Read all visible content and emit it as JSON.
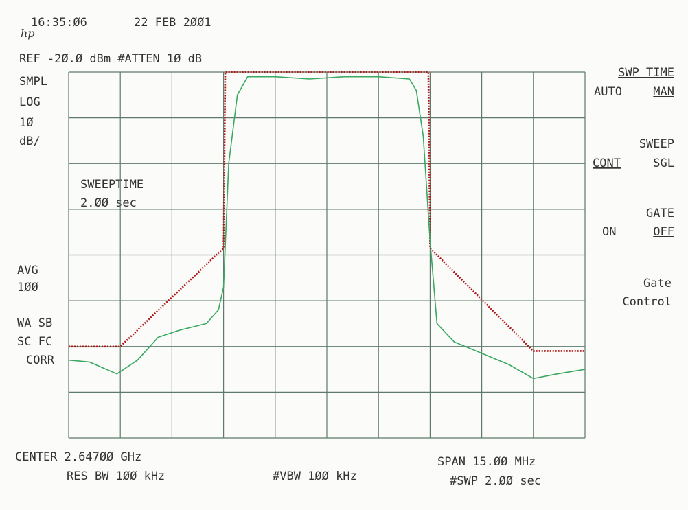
{
  "screen": {
    "time": "16:35:Ø6",
    "date": "22 FEB 2ØØ1",
    "logo": "hp",
    "ref": "REF -2Ø.Ø dBm #ATTEN 1Ø dB",
    "left": [
      "SMPL",
      "LOG",
      "1Ø",
      "dB/"
    ],
    "sweeptime": [
      "SWEEPTIME",
      "2.ØØ  sec"
    ],
    "avg": [
      "AVG",
      "1ØØ"
    ],
    "corr": [
      "WA SB",
      "SC FC",
      "CORR"
    ],
    "bottom": {
      "center": "CENTER 2.647ØØ GHz",
      "res_bw": "RES BW 1ØØ kHz",
      "vbw": "#VBW 1ØØ kHz",
      "span": "SPAN 15.ØØ MHz",
      "swp": "#SWP 2.ØØ  sec"
    },
    "softkeys": {
      "swp_time": "SWP TIME",
      "auto": "AUTO",
      "man": "MAN",
      "sweep": "SWEEP",
      "cont": "CONT",
      "sgl": "SGL",
      "gate": "GATE",
      "on": "ON",
      "off": "OFF",
      "gate_control": [
        "Gate",
        "Control"
      ]
    }
  },
  "chart_data": {
    "type": "line",
    "xlim": [
      -7.5,
      7.5
    ],
    "ylim": [
      -100,
      -20
    ],
    "xticks": [
      -7.5,
      -6,
      -4.5,
      -3,
      -1.5,
      0,
      1.5,
      3,
      4.5,
      6,
      7.5
    ],
    "yticks": [
      -100,
      -90,
      -80,
      -70,
      -60,
      -50,
      -40,
      -30,
      -20
    ],
    "grid": true,
    "series": [
      {
        "color": "#b01818",
        "style": "dotted",
        "x": [
          -7.5,
          -6,
          -3,
          -2.95,
          2.95,
          3,
          6,
          7.5
        ],
        "values": [
          -80,
          -80,
          -58.5,
          -20,
          -20,
          -58.5,
          -81,
          -81
        ]
      },
      {
        "color": "#3aa860",
        "style": "solid",
        "x": [
          -7.5,
          -6.9,
          -6.1,
          -5.5,
          -4.9,
          -4.3,
          -3.5,
          -3.15,
          -3.0,
          -2.85,
          -2.6,
          -2.3,
          -1.5,
          -0.5,
          0.5,
          1.5,
          2.4,
          2.6,
          2.8,
          3.0,
          3.2,
          3.7,
          4.5,
          5.3,
          6.0,
          6.7,
          7.5
        ],
        "values": [
          -83,
          -83.4,
          -86,
          -83,
          -78,
          -76.5,
          -75,
          -72,
          -67,
          -40,
          -25,
          -21,
          -21,
          -21.5,
          -21,
          -21,
          -21.5,
          -24,
          -34,
          -57,
          -75,
          -79,
          -81.5,
          -84,
          -87,
          -86,
          -85
        ]
      }
    ]
  }
}
